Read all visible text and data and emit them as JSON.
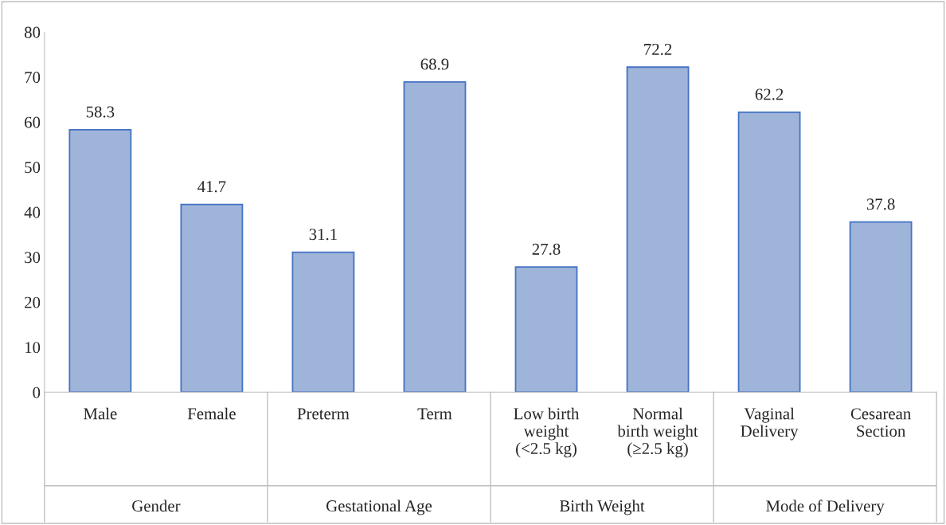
{
  "chart_data": {
    "type": "bar",
    "categories": [
      "Male",
      "Female",
      "Preterm",
      "Term",
      "Low birth\nweight\n(<2.5 kg)",
      "Normal\nbirth weight\n(≥2.5 kg)",
      "Vaginal\nDelivery",
      "Cesarean\nSection"
    ],
    "values": [
      58.3,
      41.7,
      31.1,
      68.9,
      27.8,
      72.2,
      62.2,
      37.8
    ],
    "color": "#9fb4d9",
    "ylim": [
      0,
      80
    ],
    "yticks": [
      0,
      10,
      20,
      30,
      40,
      50,
      60,
      70,
      80
    ],
    "data_labels": true,
    "grid": false,
    "annotations": [
      "Gender",
      "Gestational Age",
      "Birth Weight",
      "Mode of Delivery"
    ]
  }
}
